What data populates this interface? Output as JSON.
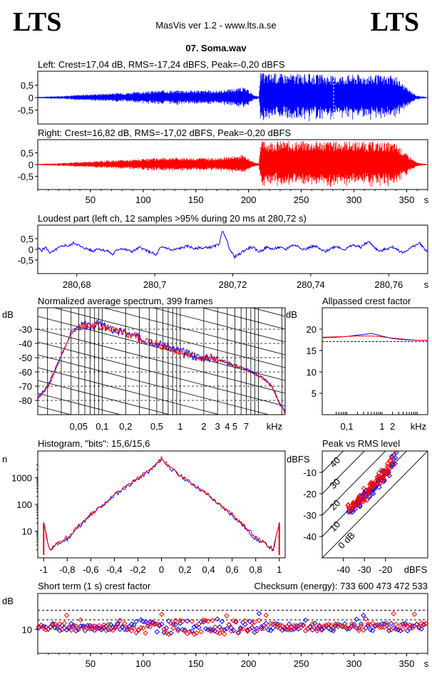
{
  "header": {
    "logo_left": "LTS",
    "logo_right": "LTS",
    "app_title": "MasVis ver 1.2 - www.lts.a.se",
    "file_name": "07. Soma.wav"
  },
  "colors": {
    "left": "#0000ff",
    "right": "#ff0000"
  },
  "chart_data": [
    {
      "id": "left-waveform",
      "type": "area",
      "title": "Left: Crest=17,04 dB, RMS=-17,24 dBFS, Peak=-0,20 dBFS",
      "ylim": [
        -1,
        1
      ],
      "yticks": [
        "0,5",
        "0",
        "-0,5"
      ],
      "xlim": [
        0,
        370
      ],
      "envelope": {
        "x": [
          0,
          20,
          50,
          80,
          100,
          120,
          150,
          170,
          195,
          200,
          205,
          210,
          211,
          260,
          280,
          300,
          330,
          340,
          350,
          360,
          370
        ],
        "amp": [
          0.03,
          0.06,
          0.14,
          0.2,
          0.24,
          0.3,
          0.3,
          0.28,
          0.42,
          0.3,
          0.1,
          0.06,
          1.0,
          0.95,
          0.9,
          0.95,
          0.9,
          0.85,
          0.4,
          0.08,
          0.02
        ]
      },
      "marker_x": 280.72
    },
    {
      "id": "right-waveform",
      "type": "area",
      "title": "Right: Crest=16,82 dB, RMS=-17,02 dBFS, Peak=-0,20 dBFS",
      "ylim": [
        -1,
        1
      ],
      "yticks": [
        "0,5",
        "0",
        "-0,5"
      ],
      "xlim": [
        0,
        370
      ],
      "xticks": [
        "50",
        "100",
        "150",
        "200",
        "250",
        "300",
        "350",
        "s"
      ],
      "envelope": {
        "x": [
          0,
          20,
          50,
          80,
          100,
          120,
          150,
          170,
          195,
          200,
          205,
          210,
          211,
          260,
          280,
          300,
          330,
          340,
          350,
          360,
          370
        ],
        "amp": [
          0.03,
          0.06,
          0.14,
          0.2,
          0.24,
          0.3,
          0.3,
          0.28,
          0.42,
          0.3,
          0.1,
          0.06,
          1.0,
          1.0,
          1.0,
          1.0,
          0.95,
          0.9,
          0.45,
          0.08,
          0.02
        ]
      }
    },
    {
      "id": "loudest-part",
      "type": "line",
      "title": "Loudest part (left  ch, 12 samples >95% during 20 ms at 280,72 s)",
      "ylim": [
        -1,
        1
      ],
      "yticks": [
        "0,5",
        "0",
        "-0,5"
      ],
      "xlim": [
        280.67,
        280.77
      ],
      "xticks": [
        "280,68",
        "280,7",
        "280,72",
        "280,74",
        "280,76",
        "s"
      ],
      "series": [
        {
          "values": [
            0.05,
            -0.05,
            0.1,
            -0.15,
            -0.1,
            0.05,
            0.12,
            0.2,
            0.15,
            0.3,
            0.25,
            0.1,
            0.05,
            0.0,
            -0.1,
            0.05,
            0.0,
            -0.05,
            -0.1,
            -0.25,
            -0.05,
            0.05,
            0.0,
            -0.05,
            -0.1,
            0.0,
            0.1,
            0.0,
            -0.1,
            -0.15,
            -0.3,
            0.05,
            0.1,
            0.05,
            -0.05,
            0.0,
            0.05,
            0.1,
            0.15,
            0.1,
            0.0,
            0.1,
            0.05,
            0.1,
            0.1,
            0.15,
            0.25,
            0.9,
            0.4,
            -0.1,
            -0.35,
            -0.25,
            -0.1,
            0.0,
            0.1,
            0.05,
            -0.1,
            -0.05,
            0.1,
            0.05,
            0.0,
            0.1,
            0.05,
            0.0,
            0.15,
            0.2,
            0.15,
            0.05,
            0.0,
            0.1,
            0.15,
            0.1,
            -0.05,
            -0.1,
            0.0,
            0.1,
            0.15,
            0.05,
            0.0,
            0.1,
            0.2,
            0.15,
            0.1,
            0.25,
            0.35,
            0.2,
            0.0,
            -0.1,
            0.0,
            0.05,
            0.1,
            0.05,
            -0.1,
            -0.15,
            0.0,
            0.1,
            0.2,
            0.3,
            0.05,
            -0.1
          ]
        }
      ]
    },
    {
      "id": "average-spectrum",
      "type": "line",
      "title": "Normalized average spectrum, 399 frames",
      "ylabel": "dB",
      "ylim": [
        -90,
        -15
      ],
      "yticks": [
        "-30",
        "-40",
        "-50",
        "-60",
        "-70",
        "-80"
      ],
      "xlim": [
        0.015,
        22
      ],
      "xticks": [
        "0,05",
        "0,1",
        "0,2",
        "0,5",
        "1",
        "2",
        "3",
        "4",
        "5",
        "7",
        "kHz"
      ],
      "x": [
        0.015,
        0.02,
        0.025,
        0.03,
        0.035,
        0.04,
        0.05,
        0.06,
        0.07,
        0.08,
        0.1,
        0.12,
        0.15,
        0.2,
        0.25,
        0.3,
        0.4,
        0.5,
        0.6,
        0.7,
        0.8,
        1,
        1.2,
        1.5,
        2,
        2.5,
        3,
        4,
        5,
        6,
        7,
        8,
        10,
        12,
        15,
        18,
        22
      ],
      "series": [
        {
          "values": [
            -78,
            -70,
            -58,
            -48,
            -40,
            -32,
            -28,
            -27,
            -29,
            -26,
            -27,
            -30,
            -31,
            -33,
            -35,
            -36,
            -38,
            -40,
            -41,
            -42,
            -44,
            -45,
            -47,
            -49,
            -50,
            -50,
            -51,
            -54,
            -55,
            -57,
            -58,
            -60,
            -62,
            -65,
            -70,
            -80,
            -88
          ]
        },
        {
          "values": [
            -79,
            -71,
            -59,
            -49,
            -41,
            -33,
            -29,
            -28,
            -28,
            -27,
            -28,
            -29,
            -32,
            -34,
            -34,
            -37,
            -39,
            -40,
            -42,
            -43,
            -44,
            -46,
            -48,
            -49,
            -51,
            -50,
            -52,
            -53,
            -56,
            -57,
            -59,
            -61,
            -63,
            -66,
            -71,
            -81,
            -89
          ]
        }
      ]
    },
    {
      "id": "allpassed-crest",
      "type": "line",
      "title": "Allpassed crest factor",
      "ylabel": "dB",
      "ylim": [
        0,
        25
      ],
      "yticks": [
        "20",
        "15",
        "10",
        "5"
      ],
      "xlim": [
        0.02,
        20
      ],
      "xticks": [
        "0,1",
        "1",
        "2",
        "kHz"
      ],
      "x": [
        0.02,
        0.05,
        0.1,
        0.2,
        0.5,
        1,
        2,
        5,
        10,
        20
      ],
      "series": [
        {
          "values": [
            18,
            18.1,
            18.3,
            18.6,
            19,
            18.4,
            17.8,
            17.5,
            17.4,
            17.4
          ]
        },
        {
          "values": [
            18.1,
            18.2,
            18.3,
            18.4,
            18.4,
            18.2,
            17.9,
            17.6,
            17.4,
            17.4
          ]
        }
      ],
      "reference": 17.1
    },
    {
      "id": "histogram",
      "type": "line",
      "title": "Histogram, \"bits\": 15,6/15,6",
      "ylabel": "n",
      "yscale": "log",
      "ylim": [
        1,
        10000
      ],
      "yticks": [
        "1000",
        "100",
        "10"
      ],
      "xlim": [
        -1.05,
        1.05
      ],
      "xticks": [
        "-1",
        "-0,8",
        "-0,6",
        "-0,4",
        "-0,2",
        "0",
        "0,2",
        "0,4",
        "0,6",
        "0,8",
        "1"
      ],
      "x": [
        -1,
        -0.95,
        -0.9,
        -0.8,
        -0.7,
        -0.6,
        -0.5,
        -0.4,
        -0.3,
        -0.2,
        -0.1,
        -0.05,
        0,
        0.05,
        0.1,
        0.2,
        0.3,
        0.4,
        0.5,
        0.6,
        0.7,
        0.8,
        0.9,
        0.95,
        1
      ],
      "series": [
        {
          "values": [
            20,
            2,
            3,
            5,
            15,
            40,
            90,
            220,
            450,
            900,
            1800,
            3000,
            5000,
            3000,
            1800,
            900,
            450,
            220,
            90,
            40,
            15,
            5,
            3,
            2,
            20
          ]
        },
        {
          "values": [
            20,
            2,
            3,
            6,
            16,
            42,
            95,
            230,
            470,
            950,
            1900,
            3100,
            5200,
            3100,
            1900,
            950,
            470,
            230,
            95,
            42,
            16,
            6,
            3,
            2,
            20
          ]
        }
      ]
    },
    {
      "id": "peak-vs-rms",
      "type": "scatter",
      "title": "Peak vs RMS level",
      "ylabel": "dBFS",
      "xlabel": "dBFS",
      "xlim": [
        -50,
        0
      ],
      "ylim": [
        -50,
        0
      ],
      "xticks": [
        "-40",
        "-30",
        "-20"
      ],
      "yticks": [
        "-10",
        "-20",
        "-30",
        "-40"
      ],
      "diagonal_labels": [
        "40",
        "30",
        "20",
        "10",
        "0 dB"
      ],
      "series": [
        {
          "x": [
            -37,
            -36,
            -35,
            -34,
            -33,
            -32,
            -31,
            -30,
            -29,
            -28,
            -27,
            -26,
            -25,
            -24,
            -23,
            -22,
            -21,
            -20,
            -19,
            -18,
            -17,
            -16
          ],
          "y": [
            -28,
            -27,
            -26,
            -25,
            -25,
            -24,
            -23,
            -21,
            -20,
            -19,
            -18,
            -17,
            -16,
            -15,
            -14,
            -13,
            -12,
            -11,
            -10,
            -8,
            -5,
            -2
          ]
        },
        {
          "x": [
            -37,
            -36,
            -35,
            -34,
            -33,
            -32,
            -31,
            -30,
            -29,
            -28,
            -27,
            -26,
            -25,
            -24,
            -23,
            -22,
            -21,
            -20,
            -19,
            -18,
            -17,
            -16
          ],
          "y": [
            -27,
            -26,
            -25,
            -26,
            -24,
            -23,
            -22,
            -22,
            -19,
            -18,
            -17,
            -16,
            -15,
            -14,
            -13,
            -12,
            -11,
            -10,
            -9,
            -7,
            -4,
            -1
          ]
        }
      ]
    },
    {
      "id": "short-term-crest",
      "type": "scatter",
      "title": "Short term (1 s) crest factor",
      "checksum_label": "Checksum (energy):",
      "checksum_value": "733 600 473 472 533",
      "ylabel": "dB",
      "ylim": [
        0,
        25
      ],
      "yticks": [
        "10"
      ],
      "xlim": [
        0,
        370
      ],
      "xticks": [
        "50",
        "100",
        "150",
        "200",
        "250",
        "300",
        "350",
        "s"
      ],
      "reference_lines": [
        18,
        14
      ],
      "base": 11
    }
  ]
}
